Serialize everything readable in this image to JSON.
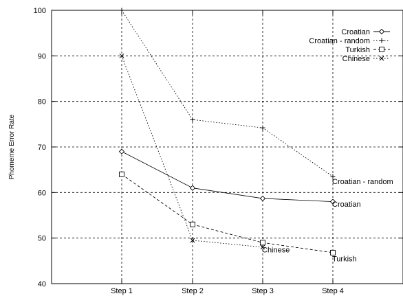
{
  "chart_data": {
    "type": "line",
    "title": "",
    "xlabel": "",
    "ylabel": "Phomeme Error Rate",
    "categories": [
      "Step 1",
      "Step 2",
      "Step 3",
      "Step 4"
    ],
    "ylim": [
      40,
      100
    ],
    "yticks": [
      40,
      50,
      60,
      70,
      80,
      90,
      100
    ],
    "grid": true,
    "legend_position": "top-right",
    "series": [
      {
        "name": "Croatian",
        "marker": "diamond",
        "dash": "solid",
        "values": [
          69,
          61,
          58.7,
          58
        ]
      },
      {
        "name": "Croatian - random",
        "marker": "plus",
        "dash": "dotted",
        "values": [
          100,
          76,
          74.2,
          63.5
        ]
      },
      {
        "name": "Turkish",
        "marker": "square",
        "dash": "dashed",
        "values": [
          64,
          53,
          49,
          46.8
        ]
      },
      {
        "name": "Chinese",
        "marker": "x",
        "dash": "dotted",
        "values": [
          90,
          49.5,
          48,
          null
        ]
      }
    ],
    "annotations": [
      {
        "text": "Croatian - random",
        "category": "Step 4",
        "value": 62.5
      },
      {
        "text": "Croatian",
        "category": "Step 4",
        "value": 57.5
      },
      {
        "text": "Chinese",
        "category": "Step 3",
        "value": 47.5
      },
      {
        "text": "Turkish",
        "category": "Step 4",
        "value": 45.5
      }
    ]
  }
}
